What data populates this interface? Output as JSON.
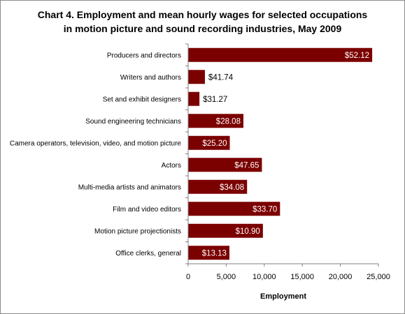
{
  "chart_data": {
    "type": "bar",
    "orientation": "horizontal",
    "title": "Chart 4. Employment and mean hourly wages for selected occupations in motion picture and sound recording industries, May 2009",
    "title_lines": [
      "Chart 4. Employment and mean hourly wages for selected occupations",
      "in motion picture and sound recording industries, May 2009"
    ],
    "xlabel": "Employment",
    "xlim": [
      0,
      25000
    ],
    "xticks": [
      0,
      5000,
      10000,
      15000,
      20000,
      25000
    ],
    "xtick_labels": [
      "0",
      "5,000",
      "10,000",
      "15,000",
      "20,000",
      "25,000"
    ],
    "bar_color": "#7b0000",
    "inside_label_color": "#ffffff",
    "outside_label_color": "#000000",
    "categories": [
      "Producers and directors",
      "Writers and authors",
      "Set and exhibit designers",
      "Sound engineering technicians",
      "Camera operators, television, video, and motion picture",
      "Actors",
      "Multi-media artists and animators",
      "Film and video editors",
      "Motion picture projectionists",
      "Office clerks, general"
    ],
    "values": [
      24180,
      2200,
      1480,
      7260,
      5470,
      9690,
      7740,
      12070,
      9820,
      5420
    ],
    "data_labels": [
      "$52.12",
      "$41.74",
      "$31.27",
      "$28.08",
      "$25.20",
      "$47.65",
      "$34.08",
      "$33.70",
      "$10.90",
      "$13.13"
    ],
    "grid": false,
    "legend": "none"
  }
}
